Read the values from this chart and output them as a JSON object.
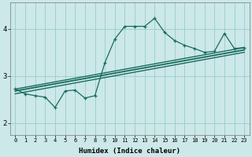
{
  "xlabel": "Humidex (Indice chaleur)",
  "ylabel": "",
  "background_color": "#cce8e8",
  "grid_color": "#99cccc",
  "line_color": "#1a6b5e",
  "x_data": [
    0,
    1,
    2,
    3,
    4,
    5,
    6,
    7,
    8,
    9,
    10,
    11,
    12,
    13,
    14,
    15,
    16,
    17,
    18,
    19,
    20,
    21,
    22,
    23
  ],
  "y_main": [
    2.72,
    2.62,
    2.58,
    2.55,
    2.33,
    2.68,
    2.7,
    2.53,
    2.58,
    3.28,
    3.78,
    4.05,
    4.05,
    4.05,
    4.22,
    3.92,
    3.75,
    3.65,
    3.58,
    3.5,
    3.52,
    3.9,
    3.58,
    3.6
  ],
  "ylim": [
    1.75,
    4.55
  ],
  "xlim": [
    -0.5,
    23.5
  ],
  "yticks": [
    2,
    3,
    4
  ],
  "xticks": [
    0,
    1,
    2,
    3,
    4,
    5,
    6,
    7,
    8,
    9,
    10,
    11,
    12,
    13,
    14,
    15,
    16,
    17,
    18,
    19,
    20,
    21,
    22,
    23
  ],
  "reg_x0": 0,
  "reg_x1": 23,
  "reg_lines": [
    [
      2.68,
      3.55
    ],
    [
      2.72,
      3.6
    ],
    [
      2.62,
      3.5
    ]
  ]
}
